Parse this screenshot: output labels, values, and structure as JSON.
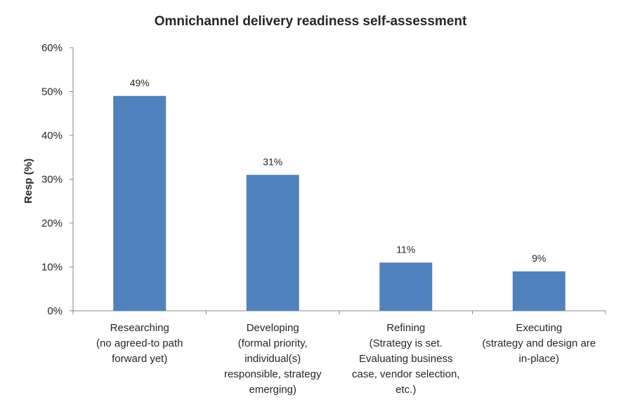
{
  "chart_data": {
    "type": "bar",
    "title": "Omnichannel delivery readiness self-assessment",
    "xlabel": "",
    "ylabel": "Resp (%)",
    "ylim": [
      0,
      60
    ],
    "yticks": [
      "0%",
      "10%",
      "20%",
      "30%",
      "40%",
      "50%",
      "60%"
    ],
    "ytick_values": [
      0,
      10,
      20,
      30,
      40,
      50,
      60
    ],
    "grid": false,
    "legend": "none",
    "bar_color": "#4F81BD",
    "categories": [
      [
        "Researching",
        "(no agreed-to path",
        "forward yet)"
      ],
      [
        "Developing",
        "(formal priority,",
        "individual(s)",
        "responsible, strategy",
        "emerging)"
      ],
      [
        "Refining",
        "(Strategy is set.",
        "Evaluating business",
        "case, vendor selection,",
        "etc.)"
      ],
      [
        "Executing",
        "(strategy and design are",
        "in-place)"
      ]
    ],
    "values": [
      49,
      31,
      11,
      9
    ],
    "data_labels": [
      "49%",
      "31%",
      "11%",
      "9%"
    ]
  }
}
